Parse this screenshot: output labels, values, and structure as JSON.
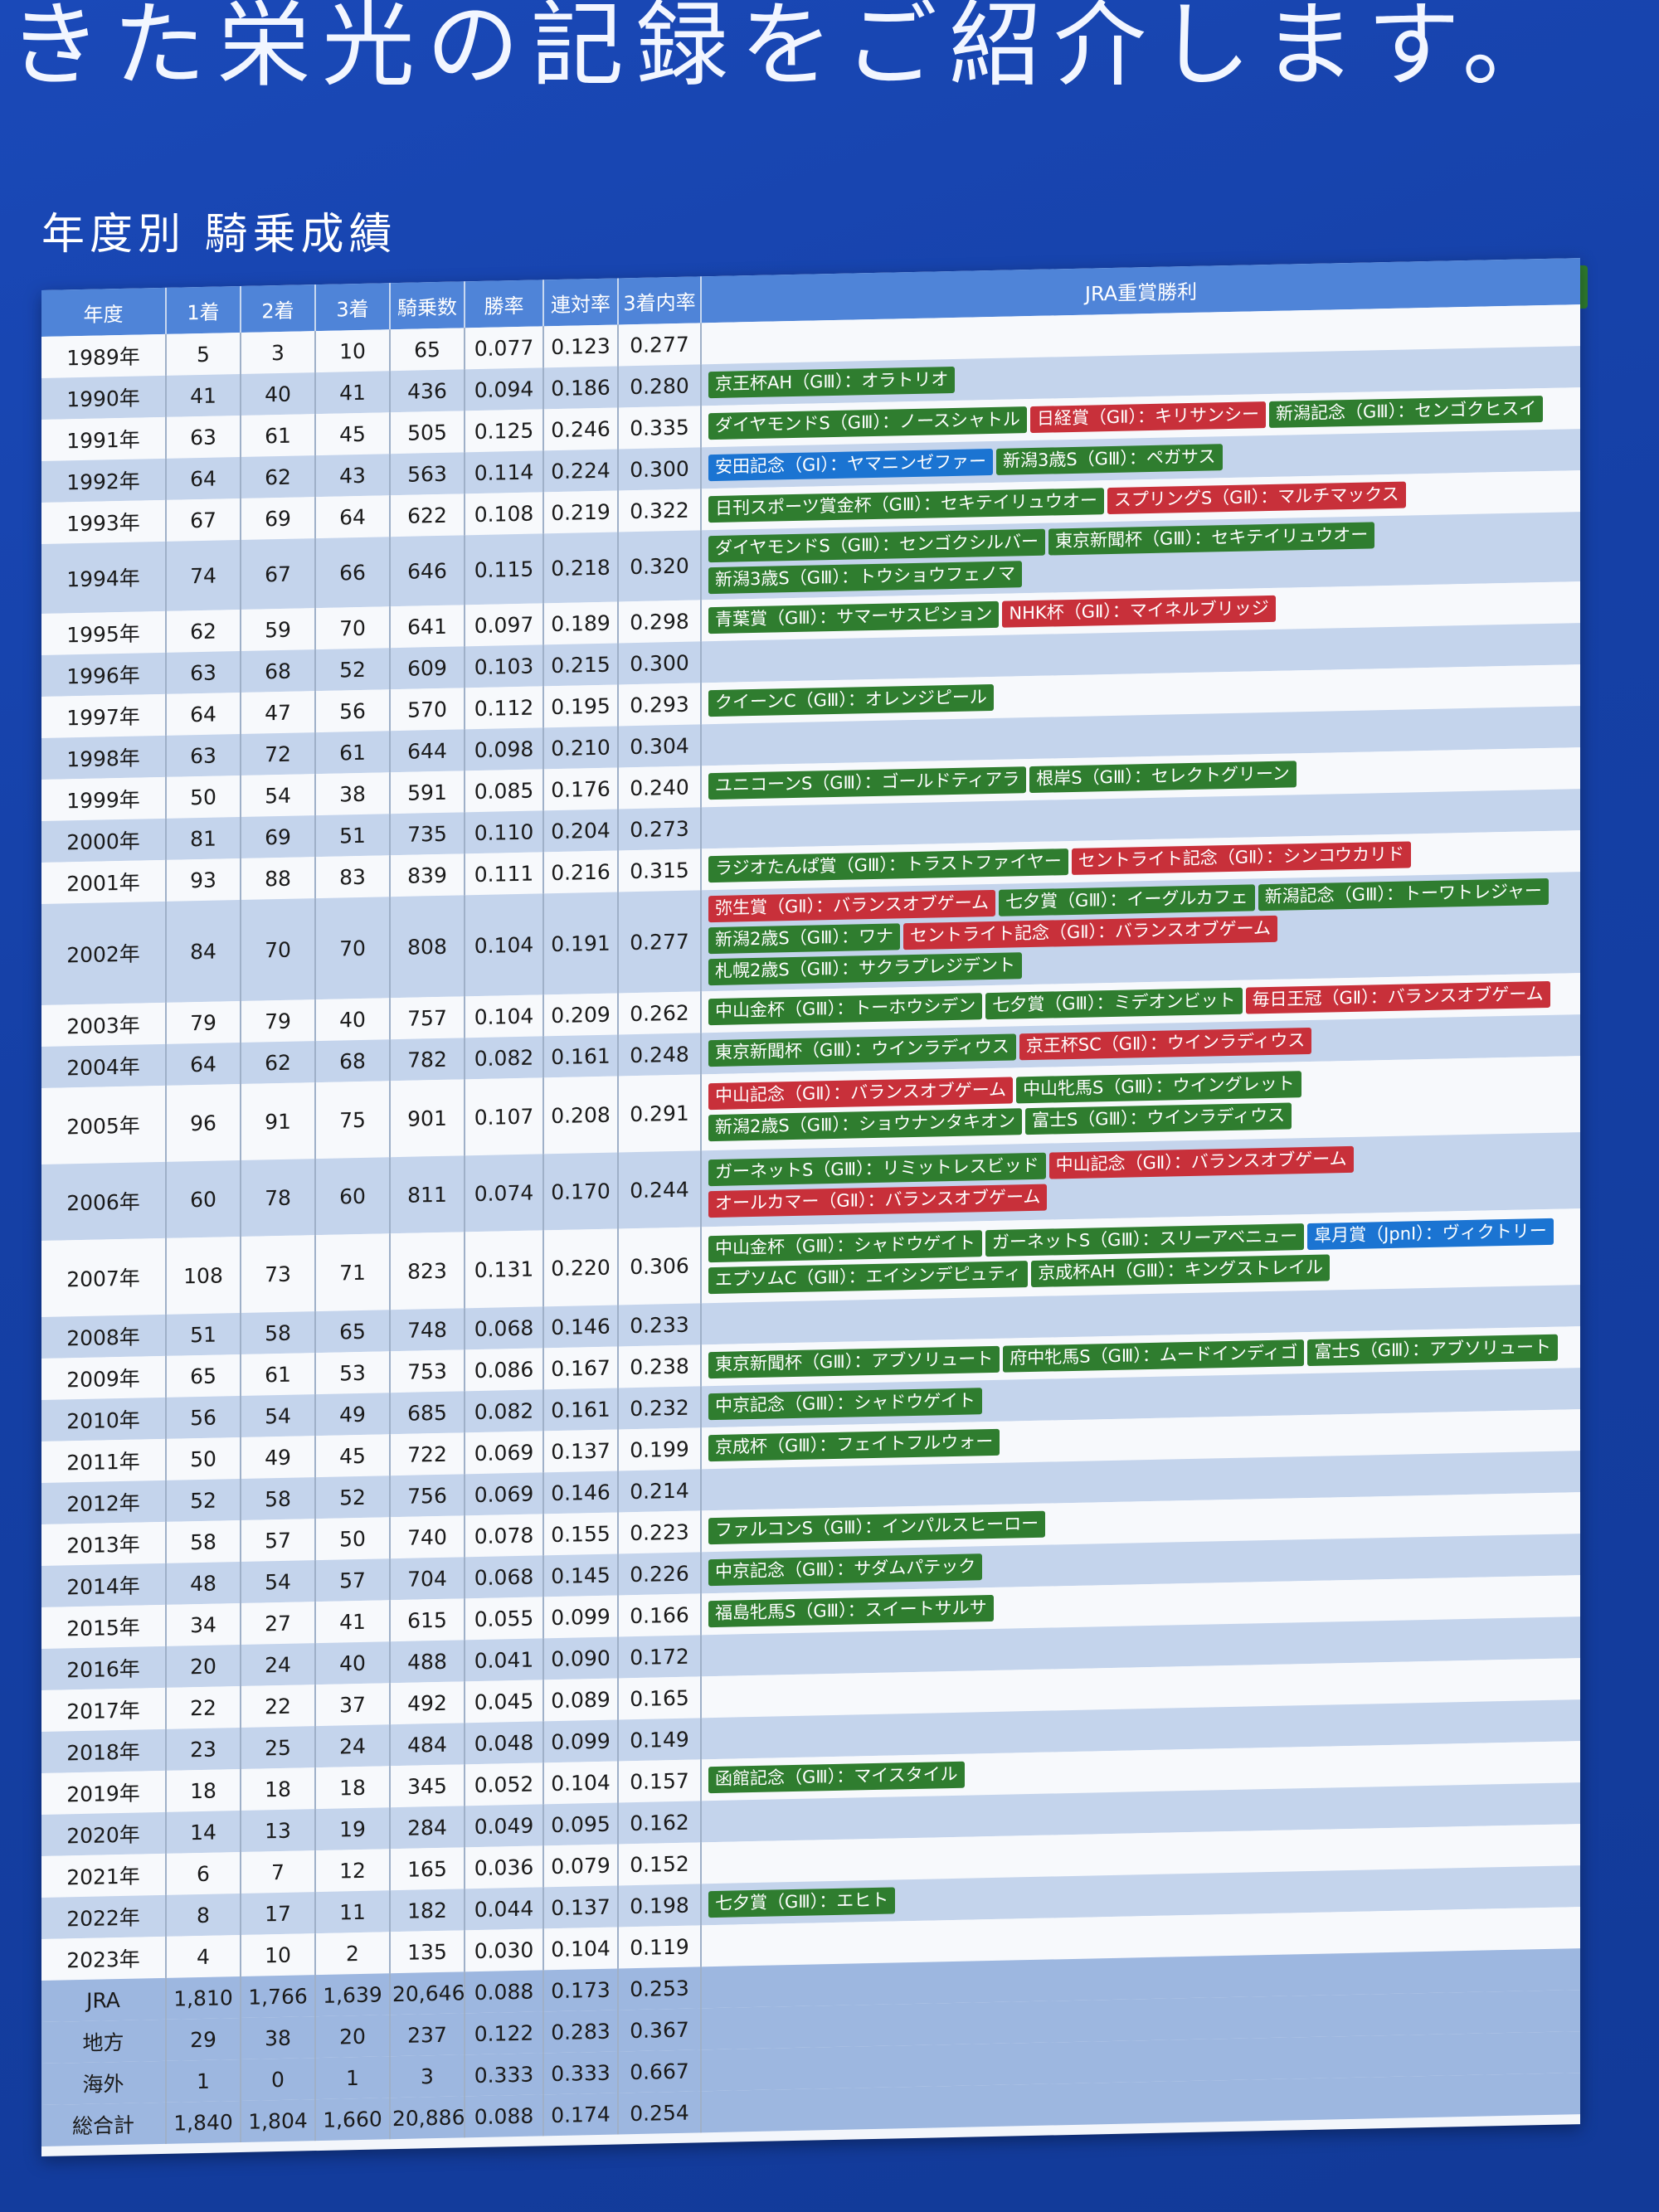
{
  "headline": "きた栄光の記録をご紹介します。",
  "section_title": "年度別 騎乗成績",
  "legend": [
    {
      "label": "GⅠ",
      "grade": "g1"
    },
    {
      "label": "JpnⅠ",
      "grade": "jpn1"
    },
    {
      "label": "GⅡ",
      "grade": "g2"
    },
    {
      "label": "GⅢ",
      "grade": "g3"
    }
  ],
  "colors": {
    "g1": "#1b74d2",
    "jpn1": "#1b74d2",
    "g2": "#c8303a",
    "g3": "#2f7d2f",
    "header": "#4f84d8"
  },
  "columns": [
    "年度",
    "1着",
    "2着",
    "3着",
    "騎乗数",
    "勝率",
    "連対率",
    "3着内率",
    "JRA重賞勝利"
  ],
  "rows": [
    {
      "year": "1989年",
      "first": "5",
      "second": "3",
      "third": "10",
      "rides": "65",
      "win": "0.077",
      "quin": "0.123",
      "show": "0.277",
      "wins": []
    },
    {
      "year": "1990年",
      "first": "41",
      "second": "40",
      "third": "41",
      "rides": "436",
      "win": "0.094",
      "quin": "0.186",
      "show": "0.280",
      "wins": [
        {
          "t": "京王杯AH（GⅢ）：オラトリオ",
          "g": "g3"
        }
      ]
    },
    {
      "year": "1991年",
      "first": "63",
      "second": "61",
      "third": "45",
      "rides": "505",
      "win": "0.125",
      "quin": "0.246",
      "show": "0.335",
      "wins": [
        {
          "t": "ダイヤモンドS（GⅢ）：ノースシャトル",
          "g": "g3"
        },
        {
          "t": "日経賞（GⅡ）：キリサンシー",
          "g": "g2"
        },
        {
          "t": "新潟記念（GⅢ）：センゴクヒスイ",
          "g": "g3"
        }
      ]
    },
    {
      "year": "1992年",
      "first": "64",
      "second": "62",
      "third": "43",
      "rides": "563",
      "win": "0.114",
      "quin": "0.224",
      "show": "0.300",
      "wins": [
        {
          "t": "安田記念（GⅠ）：ヤマニンゼファー",
          "g": "g1"
        },
        {
          "t": "新潟3歳S（GⅢ）：ペガサス",
          "g": "g3"
        }
      ]
    },
    {
      "year": "1993年",
      "first": "67",
      "second": "69",
      "third": "64",
      "rides": "622",
      "win": "0.108",
      "quin": "0.219",
      "show": "0.322",
      "wins": [
        {
          "t": "日刊スポーツ賞金杯（GⅢ）：セキテイリュウオー",
          "g": "g3"
        },
        {
          "t": "スプリングS（GⅡ）：マルチマックス",
          "g": "g2"
        }
      ]
    },
    {
      "year": "1994年",
      "first": "74",
      "second": "67",
      "third": "66",
      "rides": "646",
      "win": "0.115",
      "quin": "0.218",
      "show": "0.320",
      "wins": [
        {
          "t": "ダイヤモンドS（GⅢ）：センゴクシルバー",
          "g": "g3"
        },
        {
          "t": "東京新聞杯（GⅢ）：セキテイリュウオー",
          "g": "g3"
        },
        {
          "t": "新潟3歳S（GⅢ）：トウショウフェノマ",
          "g": "g3"
        }
      ]
    },
    {
      "year": "1995年",
      "first": "62",
      "second": "59",
      "third": "70",
      "rides": "641",
      "win": "0.097",
      "quin": "0.189",
      "show": "0.298",
      "wins": [
        {
          "t": "青葉賞（GⅢ）：サマーサスピション",
          "g": "g3"
        },
        {
          "t": "NHK杯（GⅡ）：マイネルブリッジ",
          "g": "g2"
        }
      ]
    },
    {
      "year": "1996年",
      "first": "63",
      "second": "68",
      "third": "52",
      "rides": "609",
      "win": "0.103",
      "quin": "0.215",
      "show": "0.300",
      "wins": []
    },
    {
      "year": "1997年",
      "first": "64",
      "second": "47",
      "third": "56",
      "rides": "570",
      "win": "0.112",
      "quin": "0.195",
      "show": "0.293",
      "wins": [
        {
          "t": "クイーンC（GⅢ）：オレンジピール",
          "g": "g3"
        }
      ]
    },
    {
      "year": "1998年",
      "first": "63",
      "second": "72",
      "third": "61",
      "rides": "644",
      "win": "0.098",
      "quin": "0.210",
      "show": "0.304",
      "wins": []
    },
    {
      "year": "1999年",
      "first": "50",
      "second": "54",
      "third": "38",
      "rides": "591",
      "win": "0.085",
      "quin": "0.176",
      "show": "0.240",
      "wins": [
        {
          "t": "ユニコーンS（GⅢ）：ゴールドティアラ",
          "g": "g3"
        },
        {
          "t": "根岸S（GⅢ）：セレクトグリーン",
          "g": "g3"
        }
      ]
    },
    {
      "year": "2000年",
      "first": "81",
      "second": "69",
      "third": "51",
      "rides": "735",
      "win": "0.110",
      "quin": "0.204",
      "show": "0.273",
      "wins": []
    },
    {
      "year": "2001年",
      "first": "93",
      "second": "88",
      "third": "83",
      "rides": "839",
      "win": "0.111",
      "quin": "0.216",
      "show": "0.315",
      "wins": [
        {
          "t": "ラジオたんぱ賞（GⅢ）：トラストファイヤー",
          "g": "g3"
        },
        {
          "t": "セントライト記念（GⅡ）：シンコウカリド",
          "g": "g2"
        }
      ]
    },
    {
      "year": "2002年",
      "first": "84",
      "second": "70",
      "third": "70",
      "rides": "808",
      "win": "0.104",
      "quin": "0.191",
      "show": "0.277",
      "wins": [
        {
          "t": "弥生賞（GⅡ）：バランスオブゲーム",
          "g": "g2"
        },
        {
          "t": "七夕賞（GⅢ）：イーグルカフェ",
          "g": "g3"
        },
        {
          "t": "新潟記念（GⅢ）：トーワトレジャー",
          "g": "g3"
        },
        {
          "t": "新潟2歳S（GⅢ）：ワナ",
          "g": "g3"
        },
        {
          "t": "セントライト記念（GⅡ）：バランスオブゲーム",
          "g": "g2"
        },
        {
          "t": "札幌2歳S（GⅢ）：サクラプレジデント",
          "g": "g3"
        }
      ]
    },
    {
      "year": "2003年",
      "first": "79",
      "second": "79",
      "third": "40",
      "rides": "757",
      "win": "0.104",
      "quin": "0.209",
      "show": "0.262",
      "wins": [
        {
          "t": "中山金杯（GⅢ）：トーホウシデン",
          "g": "g3"
        },
        {
          "t": "七夕賞（GⅢ）：ミデオンビット",
          "g": "g3"
        },
        {
          "t": "毎日王冠（GⅡ）：バランスオブゲーム",
          "g": "g2"
        }
      ]
    },
    {
      "year": "2004年",
      "first": "64",
      "second": "62",
      "third": "68",
      "rides": "782",
      "win": "0.082",
      "quin": "0.161",
      "show": "0.248",
      "wins": [
        {
          "t": "東京新聞杯（GⅢ）：ウインラディウス",
          "g": "g3"
        },
        {
          "t": "京王杯SC（GⅡ）：ウインラディウス",
          "g": "g2"
        }
      ]
    },
    {
      "year": "2005年",
      "first": "96",
      "second": "91",
      "third": "75",
      "rides": "901",
      "win": "0.107",
      "quin": "0.208",
      "show": "0.291",
      "wins": [
        {
          "t": "中山記念（GⅡ）：バランスオブゲーム",
          "g": "g2"
        },
        {
          "t": "中山牝馬S（GⅢ）：ウイングレット",
          "g": "g3"
        },
        {
          "t": "新潟2歳S（GⅢ）：ショウナンタキオン",
          "g": "g3"
        },
        {
          "t": "富士S（GⅢ）：ウインラディウス",
          "g": "g3"
        }
      ]
    },
    {
      "year": "2006年",
      "first": "60",
      "second": "78",
      "third": "60",
      "rides": "811",
      "win": "0.074",
      "quin": "0.170",
      "show": "0.244",
      "wins": [
        {
          "t": "ガーネットS（GⅢ）：リミットレスビッド",
          "g": "g3"
        },
        {
          "t": "中山記念（GⅡ）：バランスオブゲーム",
          "g": "g2"
        },
        {
          "t": "オールカマー（GⅡ）：バランスオブゲーム",
          "g": "g2"
        }
      ]
    },
    {
      "year": "2007年",
      "first": "108",
      "second": "73",
      "third": "71",
      "rides": "823",
      "win": "0.131",
      "quin": "0.220",
      "show": "0.306",
      "wins": [
        {
          "t": "中山金杯（GⅢ）：シャドウゲイト",
          "g": "g3"
        },
        {
          "t": "ガーネットS（GⅢ）：スリーアベニュー",
          "g": "g3"
        },
        {
          "t": "皐月賞（JpnⅠ）：ヴィクトリー",
          "g": "jpn1"
        },
        {
          "t": "エプソムC（GⅢ）：エイシンデピュティ",
          "g": "g3"
        },
        {
          "t": "京成杯AH（GⅢ）：キングストレイル",
          "g": "g3"
        }
      ]
    },
    {
      "year": "2008年",
      "first": "51",
      "second": "58",
      "third": "65",
      "rides": "748",
      "win": "0.068",
      "quin": "0.146",
      "show": "0.233",
      "wins": []
    },
    {
      "year": "2009年",
      "first": "65",
      "second": "61",
      "third": "53",
      "rides": "753",
      "win": "0.086",
      "quin": "0.167",
      "show": "0.238",
      "wins": [
        {
          "t": "東京新聞杯（GⅢ）：アブソリュート",
          "g": "g3"
        },
        {
          "t": "府中牝馬S（GⅢ）：ムードインディゴ",
          "g": "g3"
        },
        {
          "t": "富士S（GⅢ）：アブソリュート",
          "g": "g3"
        }
      ]
    },
    {
      "year": "2010年",
      "first": "56",
      "second": "54",
      "third": "49",
      "rides": "685",
      "win": "0.082",
      "quin": "0.161",
      "show": "0.232",
      "wins": [
        {
          "t": "中京記念（GⅢ）：シャドウゲイト",
          "g": "g3"
        }
      ]
    },
    {
      "year": "2011年",
      "first": "50",
      "second": "49",
      "third": "45",
      "rides": "722",
      "win": "0.069",
      "quin": "0.137",
      "show": "0.199",
      "wins": [
        {
          "t": "京成杯（GⅢ）：フェイトフルウォー",
          "g": "g3"
        }
      ]
    },
    {
      "year": "2012年",
      "first": "52",
      "second": "58",
      "third": "52",
      "rides": "756",
      "win": "0.069",
      "quin": "0.146",
      "show": "0.214",
      "wins": []
    },
    {
      "year": "2013年",
      "first": "58",
      "second": "57",
      "third": "50",
      "rides": "740",
      "win": "0.078",
      "quin": "0.155",
      "show": "0.223",
      "wins": [
        {
          "t": "ファルコンS（GⅢ）：インパルスヒーロー",
          "g": "g3"
        }
      ]
    },
    {
      "year": "2014年",
      "first": "48",
      "second": "54",
      "third": "57",
      "rides": "704",
      "win": "0.068",
      "quin": "0.145",
      "show": "0.226",
      "wins": [
        {
          "t": "中京記念（GⅢ）：サダムパテック",
          "g": "g3"
        }
      ]
    },
    {
      "year": "2015年",
      "first": "34",
      "second": "27",
      "third": "41",
      "rides": "615",
      "win": "0.055",
      "quin": "0.099",
      "show": "0.166",
      "wins": [
        {
          "t": "福島牝馬S（GⅢ）：スイートサルサ",
          "g": "g3"
        }
      ]
    },
    {
      "year": "2016年",
      "first": "20",
      "second": "24",
      "third": "40",
      "rides": "488",
      "win": "0.041",
      "quin": "0.090",
      "show": "0.172",
      "wins": []
    },
    {
      "year": "2017年",
      "first": "22",
      "second": "22",
      "third": "37",
      "rides": "492",
      "win": "0.045",
      "quin": "0.089",
      "show": "0.165",
      "wins": []
    },
    {
      "year": "2018年",
      "first": "23",
      "second": "25",
      "third": "24",
      "rides": "484",
      "win": "0.048",
      "quin": "0.099",
      "show": "0.149",
      "wins": []
    },
    {
      "year": "2019年",
      "first": "18",
      "second": "18",
      "third": "18",
      "rides": "345",
      "win": "0.052",
      "quin": "0.104",
      "show": "0.157",
      "wins": [
        {
          "t": "函館記念（GⅢ）：マイスタイル",
          "g": "g3"
        }
      ]
    },
    {
      "year": "2020年",
      "first": "14",
      "second": "13",
      "third": "19",
      "rides": "284",
      "win": "0.049",
      "quin": "0.095",
      "show": "0.162",
      "wins": []
    },
    {
      "year": "2021年",
      "first": "6",
      "second": "7",
      "third": "12",
      "rides": "165",
      "win": "0.036",
      "quin": "0.079",
      "show": "0.152",
      "wins": []
    },
    {
      "year": "2022年",
      "first": "8",
      "second": "17",
      "third": "11",
      "rides": "182",
      "win": "0.044",
      "quin": "0.137",
      "show": "0.198",
      "wins": [
        {
          "t": "七夕賞（GⅢ）：エヒト",
          "g": "g3"
        }
      ]
    },
    {
      "year": "2023年",
      "first": "4",
      "second": "10",
      "third": "2",
      "rides": "135",
      "win": "0.030",
      "quin": "0.104",
      "show": "0.119",
      "wins": []
    }
  ],
  "totals": [
    {
      "year": "JRA",
      "first": "1,810",
      "second": "1,766",
      "third": "1,639",
      "rides": "20,646",
      "win": "0.088",
      "quin": "0.173",
      "show": "0.253"
    },
    {
      "year": "地方",
      "first": "29",
      "second": "38",
      "third": "20",
      "rides": "237",
      "win": "0.122",
      "quin": "0.283",
      "show": "0.367"
    },
    {
      "year": "海外",
      "first": "1",
      "second": "0",
      "third": "1",
      "rides": "3",
      "win": "0.333",
      "quin": "0.333",
      "show": "0.667"
    },
    {
      "year": "総合計",
      "first": "1,840",
      "second": "1,804",
      "third": "1,660",
      "rides": "20,886",
      "win": "0.088",
      "quin": "0.174",
      "show": "0.254"
    }
  ]
}
